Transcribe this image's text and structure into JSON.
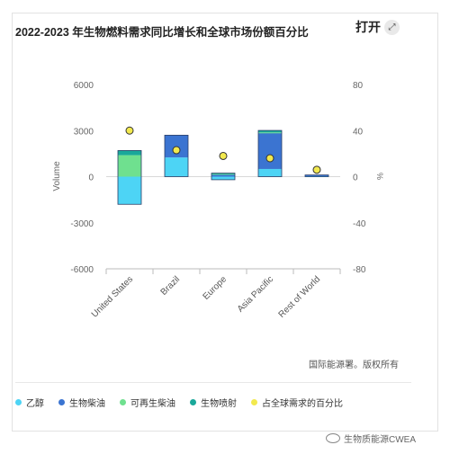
{
  "card": {
    "title": "2022-2023 年生物燃料需求同比增长和全球市场份额百分比",
    "expand_label": "打开",
    "source": "国际能源署。版权所有",
    "watermark": "生物质能源CWEA"
  },
  "colors": {
    "ethanol": "#4dd4f5",
    "biodiesel": "#3b74d1",
    "renewable_diesel": "#6fe08f",
    "biojet": "#1aa89a",
    "share": "#f2e94e"
  },
  "chart_data": {
    "type": "bar",
    "stacked": true,
    "categories": [
      "United States",
      "Brazil",
      "Europe",
      "Asia Pacific",
      "Rest of World"
    ],
    "ylabel": "Volume",
    "y2label": "%",
    "ylim": [
      -6000,
      6000
    ],
    "y_ticks": [
      6000,
      3000,
      0,
      -3000,
      -6000
    ],
    "y2lim": [
      -80,
      80
    ],
    "y2_ticks": [
      80,
      40,
      0,
      -40,
      -80
    ],
    "grid": false,
    "legend_position": "bottom",
    "series": [
      {
        "name": "乙醇",
        "key": "ethanol",
        "values": [
          -1800,
          1250,
          -200,
          500,
          30
        ]
      },
      {
        "name": "生物柴油",
        "key": "biodiesel",
        "values": [
          0,
          1450,
          150,
          2350,
          80
        ]
      },
      {
        "name": "可再生柴油",
        "key": "renewable_diesel",
        "values": [
          1400,
          0,
          30,
          30,
          0
        ]
      },
      {
        "name": "生物喷射",
        "key": "biojet",
        "values": [
          300,
          0,
          50,
          130,
          0
        ]
      }
    ],
    "share_series": {
      "name": "占全球需求的百分比",
      "key": "share",
      "values": [
        40,
        23,
        18,
        16,
        6
      ]
    }
  }
}
